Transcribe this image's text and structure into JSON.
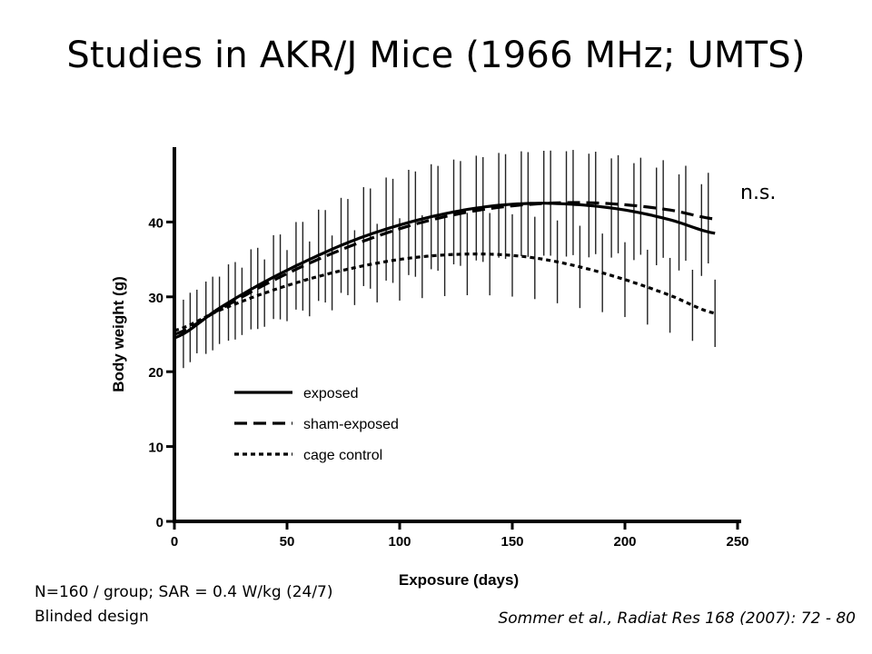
{
  "slide": {
    "title": "Studies in AKR/J Mice (1966 MHz; UMTS)",
    "significance_note": "n.s.",
    "notes": [
      "N=160 / group; SAR = 0.4 W/kg (24/7)",
      "Blinded design"
    ],
    "citation": "Sommer et al., Radiat Res 168 (2007): 72 - 80"
  },
  "chart_data": {
    "type": "line",
    "title": "",
    "xlabel": "Exposure (days)",
    "ylabel": "Body weight (g)",
    "xlim": [
      0,
      250
    ],
    "ylim": [
      0,
      50
    ],
    "xticks": [
      0,
      50,
      100,
      150,
      200,
      250
    ],
    "yticks": [
      0,
      10,
      20,
      30,
      40
    ],
    "grid": false,
    "legend_position": "lower-left",
    "series": [
      {
        "name": "exposed",
        "style": "solid",
        "x": [
          0,
          20,
          40,
          60,
          80,
          100,
          120,
          140,
          160,
          180,
          200,
          220,
          240
        ],
        "y": [
          24.5,
          28.5,
          32.0,
          35.0,
          37.6,
          39.6,
          41.1,
          42.1,
          42.5,
          42.3,
          41.6,
          40.3,
          38.5
        ],
        "error": [
          4.5,
          5.0,
          5.5,
          6.0,
          6.5,
          7.0,
          7.0,
          7.0,
          7.0,
          7.0,
          6.5,
          6.5,
          6.0
        ]
      },
      {
        "name": "sham-exposed",
        "style": "dashed",
        "x": [
          0,
          20,
          40,
          60,
          80,
          100,
          120,
          140,
          160,
          180,
          200,
          220,
          240
        ],
        "y": [
          25.0,
          28.3,
          31.6,
          34.5,
          37.0,
          39.1,
          40.7,
          41.8,
          42.4,
          42.6,
          42.3,
          41.6,
          40.4
        ],
        "error": [
          4.5,
          5.0,
          5.5,
          6.0,
          6.5,
          7.0,
          7.0,
          7.0,
          7.0,
          7.0,
          6.5,
          6.5,
          6.0
        ]
      },
      {
        "name": "cage control",
        "style": "dotted",
        "x": [
          0,
          20,
          40,
          60,
          80,
          100,
          120,
          140,
          160,
          180,
          200,
          220,
          240
        ],
        "y": [
          25.5,
          28.2,
          30.5,
          32.4,
          33.9,
          35.0,
          35.6,
          35.7,
          35.2,
          34.0,
          32.3,
          30.2,
          27.8
        ],
        "error": [
          4.0,
          4.5,
          4.5,
          5.0,
          5.0,
          5.5,
          5.5,
          5.5,
          5.5,
          5.5,
          5.0,
          5.0,
          4.5
        ]
      }
    ]
  }
}
